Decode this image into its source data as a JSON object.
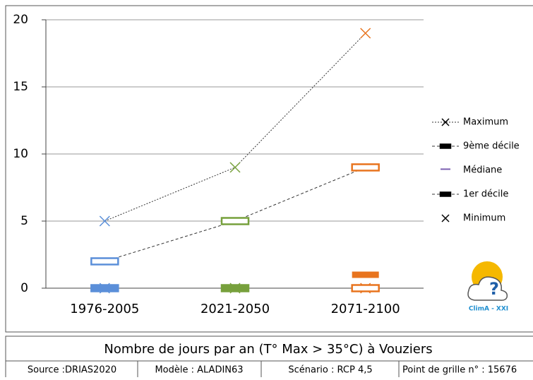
{
  "chart_data": {
    "type": "line",
    "categories": [
      "1976-2005",
      "2021-2050",
      "2071-2100"
    ],
    "colors": [
      "#5b8fd9",
      "#77a03c",
      "#e8741e"
    ],
    "ylim": [
      0,
      20
    ],
    "yticks": [
      0,
      5,
      10,
      15,
      20
    ],
    "grid": true,
    "series": [
      {
        "name": "Maximum",
        "color": "#000000",
        "marker": "cross",
        "line": "dotted",
        "values": [
          5,
          9,
          19
        ]
      },
      {
        "name": "9ème décile",
        "color": "#000000",
        "marker": "open-box",
        "line": "dashed",
        "values": [
          2,
          5,
          9
        ]
      },
      {
        "name": "Médiane",
        "color": "#7b5fb0",
        "marker": "box",
        "line": null,
        "values": [
          0,
          0,
          1
        ]
      },
      {
        "name": "1er décile",
        "color": "#000000",
        "marker": "open-box",
        "line": null,
        "values": [
          0,
          0,
          0
        ]
      },
      {
        "name": "Minimum",
        "color": "#000000",
        "marker": "cross",
        "line": null,
        "values": [
          0,
          0,
          0
        ]
      }
    ],
    "logo": "ClimA - XXI"
  },
  "footer": {
    "title": "Nombre de jours par an (T° Max > 35°C) à Vouziers",
    "cells": [
      "Source :DRIAS2020",
      "Modèle :  ALADIN63",
      "Scénario : RCP 4,5",
      "Point de grille n° : 15676"
    ]
  }
}
